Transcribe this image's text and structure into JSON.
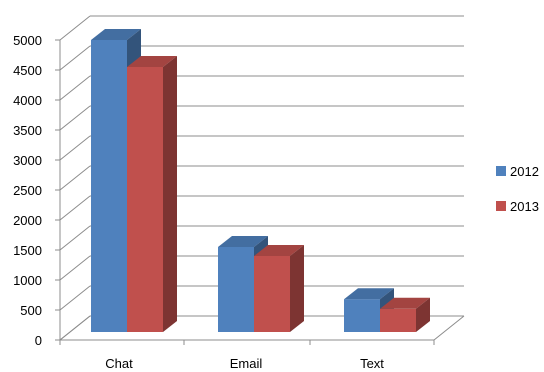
{
  "chart_data": {
    "type": "bar",
    "categories": [
      "Chat",
      "Email",
      "Text"
    ],
    "series": [
      {
        "name": "2012",
        "values": [
          5000,
          1550,
          680
        ],
        "color": "#4F81BD"
      },
      {
        "name": "2013",
        "values": [
          4550,
          1400,
          520
        ],
        "color": "#C0504D"
      }
    ],
    "ylim": [
      0,
      5000
    ],
    "yticks": [
      "0",
      "500",
      "1000",
      "1500",
      "2000",
      "2500",
      "3000",
      "3500",
      "4000",
      "4500",
      "5000"
    ],
    "title": "",
    "xlabel": "",
    "ylabel": "",
    "grid": true,
    "legend": "right",
    "style": "3d-clustered-column"
  }
}
